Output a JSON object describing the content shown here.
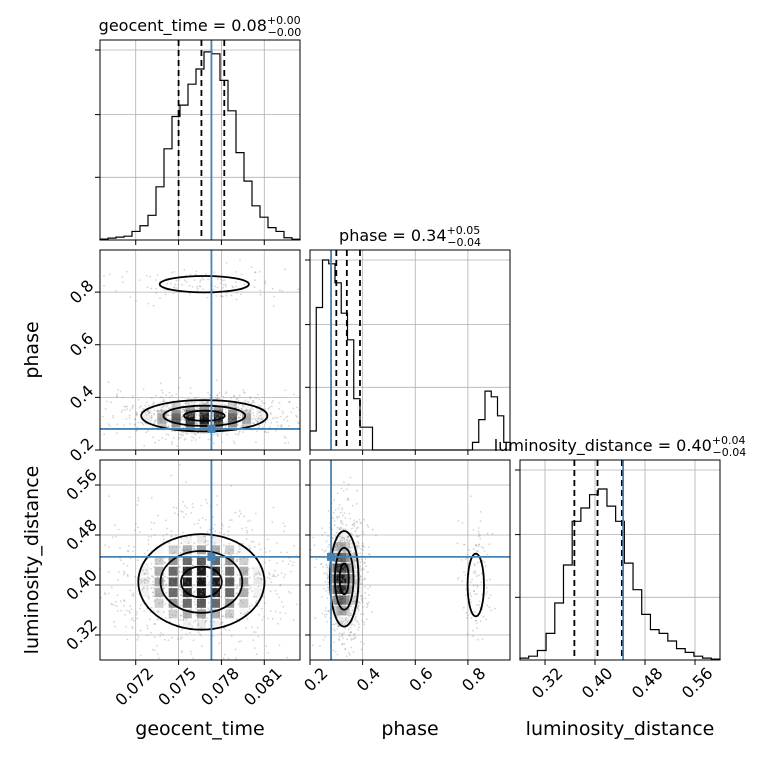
{
  "chart_data": {
    "type": "corner",
    "parameters": [
      "geocent_time",
      "phase",
      "luminosity_distance"
    ],
    "titles": [
      {
        "param": "geocent_time",
        "label": "geocent_time = 0.08",
        "sup": "+0.00",
        "sub": "−0.00"
      },
      {
        "param": "phase",
        "label": "phase = 0.34",
        "sup": "+0.05",
        "sub": "−0.04"
      },
      {
        "param": "luminosity_distance",
        "label": "luminosity_distance = 0.40",
        "sup": "+0.04",
        "sub": "−0.04"
      }
    ],
    "axis_labels": {
      "x": [
        "geocent_time",
        "phase",
        "luminosity_distance"
      ],
      "y": [
        "phase",
        "luminosity_distance"
      ]
    },
    "ranges": {
      "geocent_time": [
        0.0695,
        0.0835
      ],
      "phase": [
        0.2,
        0.96
      ],
      "luminosity_distance": [
        0.28,
        0.6
      ]
    },
    "ticks": {
      "geocent_time": {
        "values": [
          0.072,
          0.075,
          0.078,
          0.081
        ],
        "labels": [
          "0.072",
          "0.075",
          "0.078",
          "0.081"
        ]
      },
      "phase": {
        "values": [
          0.2,
          0.4,
          0.6,
          0.8
        ],
        "labels": [
          "0.2",
          "0.4",
          "0.6",
          "0.8"
        ]
      },
      "luminosity_distance": {
        "values": [
          0.32,
          0.4,
          0.48,
          0.56
        ],
        "labels": [
          "0.32",
          "0.40",
          "0.48",
          "0.56"
        ]
      }
    },
    "truths": {
      "geocent_time": 0.0773,
      "phase": 0.28,
      "luminosity_distance": 0.445
    },
    "quantiles": {
      "geocent_time": [
        0.075,
        0.0766,
        0.0782
      ],
      "phase": [
        0.3,
        0.34,
        0.39
      ],
      "luminosity_distance": [
        0.367,
        0.404,
        0.443
      ]
    },
    "histograms": {
      "geocent_time": {
        "counts": [
          0.005,
          0.01,
          0.015,
          0.02,
          0.045,
          0.075,
          0.13,
          0.28,
          0.48,
          0.65,
          0.71,
          0.82,
          0.9,
          0.99,
          0.98,
          0.84,
          0.68,
          0.46,
          0.31,
          0.18,
          0.12,
          0.065,
          0.045,
          0.012,
          0.004
        ]
      },
      "phase": {
        "counts": [
          0.1,
          0.75,
          1.0,
          0.98,
          0.88,
          0.72,
          0.58,
          0.27,
          0.12,
          0.12,
          0,
          0,
          0,
          0,
          0,
          0,
          0,
          0,
          0,
          0,
          0,
          0,
          0,
          0,
          0,
          0,
          0.04,
          0.16,
          0.31,
          0.28,
          0.18,
          0.04
        ]
      },
      "luminosity_distance": {
        "counts": [
          0.01,
          0.02,
          0.05,
          0.14,
          0.3,
          0.5,
          0.73,
          0.8,
          0.87,
          0.9,
          0.81,
          0.73,
          0.51,
          0.37,
          0.24,
          0.16,
          0.14,
          0.1,
          0.06,
          0.04,
          0.02,
          0.01,
          0.005
        ]
      }
    },
    "blobs": {
      "geocent_time-phase": [
        {
          "mean": [
            0.0768,
            0.33
          ],
          "sd": [
            0.0026,
            0.035
          ],
          "weight": 0.86
        },
        {
          "mean": [
            0.0768,
            0.83
          ],
          "sd": [
            0.0025,
            0.025
          ],
          "weight": 0.14
        }
      ],
      "geocent_time-luminosity_distance": [
        {
          "mean": [
            0.0766,
            0.405
          ],
          "sd": [
            0.0026,
            0.045
          ],
          "weight": 1.0
        }
      ],
      "phase-luminosity_distance": [
        {
          "mean": [
            0.33,
            0.41
          ],
          "sd": [
            0.032,
            0.045
          ],
          "weight": 0.86
        },
        {
          "mean": [
            0.83,
            0.4
          ],
          "sd": [
            0.025,
            0.04
          ],
          "weight": 0.14
        }
      ]
    }
  }
}
